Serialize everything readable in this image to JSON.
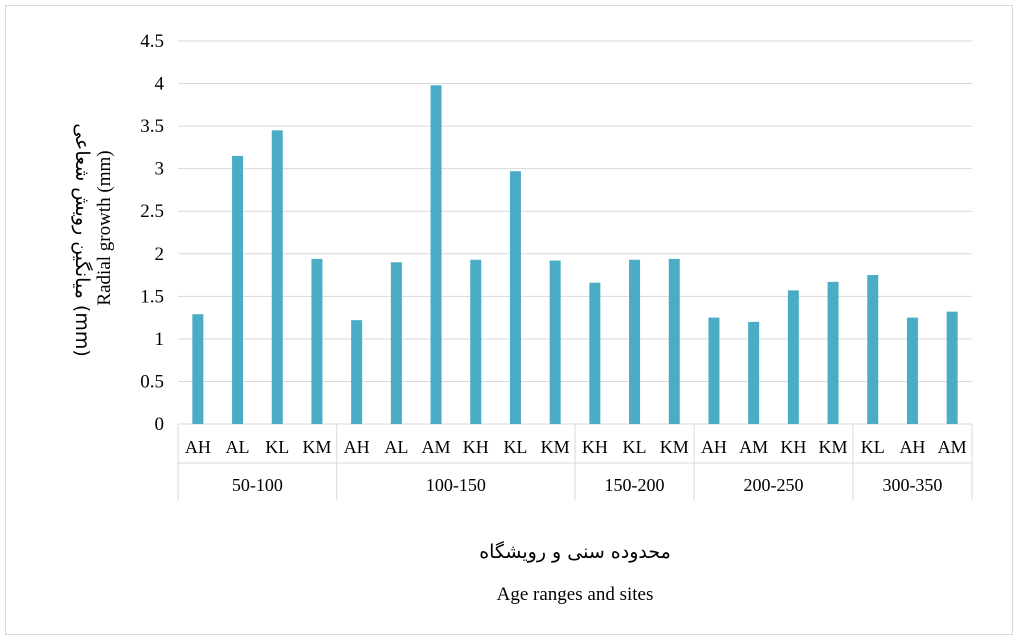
{
  "chart_data": {
    "type": "bar",
    "groups": [
      {
        "label": "50-100",
        "categories": [
          "AH",
          "AL",
          "KL",
          "KM"
        ],
        "values": [
          1.29,
          3.15,
          3.45,
          1.94
        ]
      },
      {
        "label": "100-150",
        "categories": [
          "AH",
          "AL",
          "AM",
          "KH",
          "KL",
          "KM"
        ],
        "values": [
          1.22,
          1.9,
          3.98,
          1.93,
          2.97,
          1.92
        ]
      },
      {
        "label": "150-200",
        "categories": [
          "KH",
          "KL",
          "KM"
        ],
        "values": [
          1.66,
          1.93,
          1.94
        ]
      },
      {
        "label": "200-250",
        "categories": [
          "AH",
          "AM",
          "KH",
          "KM"
        ],
        "values": [
          1.25,
          1.2,
          1.57,
          1.67
        ]
      },
      {
        "label": "300-350",
        "categories": [
          "KL",
          "AH",
          "AM"
        ],
        "values": [
          1.75,
          1.25,
          1.32
        ]
      }
    ],
    "ylabel_fa": "میانگین رویش شعاعی (mm)",
    "ylabel_en": "Radial growth (mm)",
    "xlabel_fa": "محدوده سنی و رویشگاه",
    "xlabel_en": "Age ranges and sites",
    "ylim": [
      0,
      4.5
    ],
    "yticks": [
      "0",
      "0.5",
      "1",
      "1.5",
      "2",
      "2.5",
      "3",
      "3.5",
      "4",
      "4.5"
    ],
    "grid": true,
    "bar_color": "#4bacc6",
    "grid_color": "#d9d9d9"
  }
}
